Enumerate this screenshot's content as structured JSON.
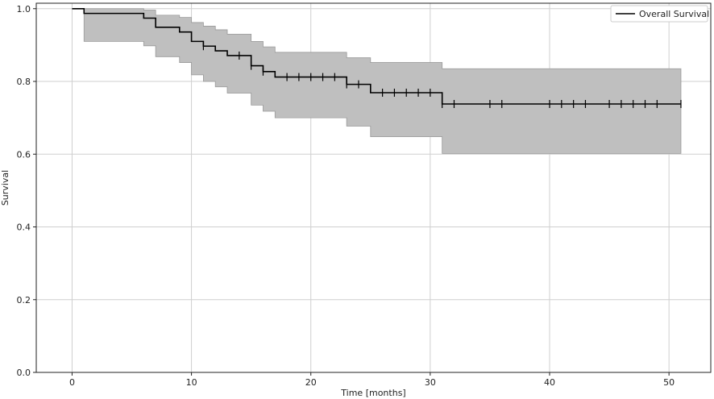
{
  "chart_data": {
    "type": "line",
    "title": "",
    "xlabel": "Time [months]",
    "ylabel": "Survival",
    "xlim": [
      -3,
      53.5
    ],
    "ylim": [
      0,
      1.015
    ],
    "x_ticks": [
      0,
      10,
      20,
      30,
      40,
      50
    ],
    "y_ticks": [
      0.0,
      0.2,
      0.4,
      0.6,
      0.8,
      1.0
    ],
    "x_tick_labels": [
      "0",
      "10",
      "20",
      "30",
      "40",
      "50"
    ],
    "y_tick_labels": [
      "0.0",
      "0.2",
      "0.4",
      "0.6",
      "0.8",
      "1.0"
    ],
    "grid": true,
    "legend_position": "top-right",
    "series": [
      {
        "name": "Overall Survival",
        "color": "#000000",
        "step_x": [
          0,
          1,
          6,
          7,
          9,
          10,
          11,
          12,
          13,
          15,
          16,
          17,
          23,
          25,
          31,
          51
        ],
        "step_y": [
          1.0,
          0.987,
          0.974,
          0.949,
          0.936,
          0.91,
          0.897,
          0.884,
          0.871,
          0.843,
          0.827,
          0.812,
          0.792,
          0.769,
          0.738,
          0.738
        ],
        "censored_x": [
          11,
          14,
          15,
          16,
          18,
          19,
          20,
          21,
          22,
          23,
          24,
          26,
          27,
          28,
          29,
          30,
          31,
          32,
          35,
          36,
          40,
          41,
          42,
          43,
          45,
          46,
          47,
          48,
          49,
          51
        ],
        "ci_color": "#bfbfbf",
        "ci_edge_color": "#999999",
        "ci_upper": [
          1.0,
          1.0,
          0.996,
          0.982,
          0.976,
          0.962,
          0.952,
          0.942,
          0.93,
          0.91,
          0.895,
          0.88,
          0.865,
          0.852,
          0.835,
          0.835
        ],
        "ci_lower": [
          1.0,
          0.91,
          0.898,
          0.868,
          0.852,
          0.818,
          0.8,
          0.785,
          0.768,
          0.735,
          0.718,
          0.7,
          0.677,
          0.648,
          0.602,
          0.602
        ]
      }
    ]
  }
}
